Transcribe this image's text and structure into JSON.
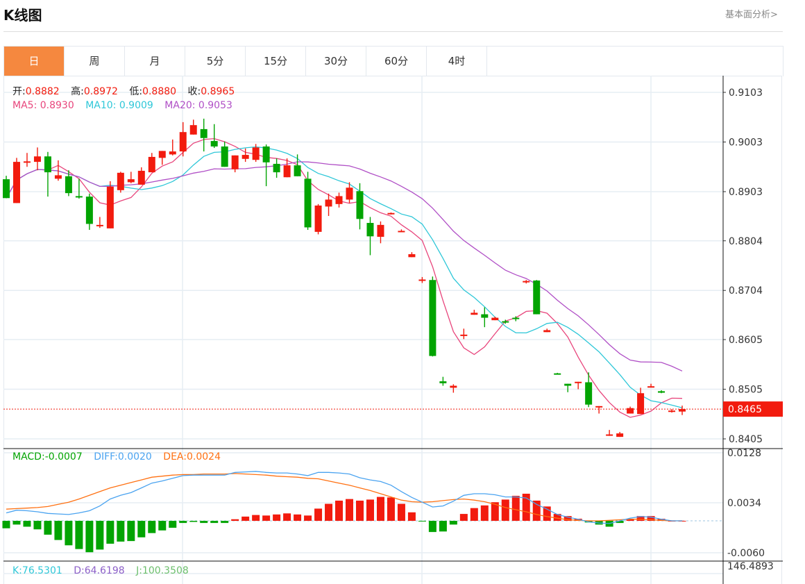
{
  "header": {
    "title": "K线图",
    "link": "基本面分析>"
  },
  "tabs": [
    {
      "label": "日",
      "active": true
    },
    {
      "label": "周",
      "active": false
    },
    {
      "label": "月",
      "active": false
    },
    {
      "label": "5分",
      "active": false
    },
    {
      "label": "15分",
      "active": false
    },
    {
      "label": "30分",
      "active": false
    },
    {
      "label": "60分",
      "active": false
    },
    {
      "label": "4时",
      "active": false
    }
  ],
  "info": {
    "open_label": "开:",
    "open": "0.8882",
    "high_label": "高:",
    "high": "0.8972",
    "low_label": "低:",
    "low": "0.8880",
    "close_label": "收:",
    "close": "0.8965"
  },
  "ma_legend": {
    "ma5_label": "MA5:",
    "ma5": "0.8930",
    "ma10_label": "MA10:",
    "ma10": "0.9009",
    "ma20_label": "MA20:",
    "ma20": "0.9053"
  },
  "macd_legend": {
    "macd_label": "MACD:",
    "macd": "-0.0007",
    "diff_label": "DIFF:",
    "diff": "0.0020",
    "dea_label": "DEA:",
    "dea": "0.0024"
  },
  "kdj_legend": {
    "k_label": "K:",
    "k": "76.5301",
    "d_label": "D:",
    "d": "64.6198",
    "j_label": "J:",
    "j": "100.3508"
  },
  "colors": {
    "up": "#f21b0e",
    "down": "#02a402",
    "accent": "#f5883f",
    "ma5": "#e8457c",
    "ma10": "#2ec7d8",
    "ma20": "#b04fc6",
    "diff": "#4aa3f0",
    "dea": "#ff7011",
    "macd_pos": "#f21b0e",
    "macd_neg": "#02a402",
    "k": "#2ec7d8",
    "d": "#8c5fc8",
    "j": "#6cbf6c"
  },
  "chart_data": {
    "type": "candlestick",
    "title": "K线图",
    "candle_format": [
      "open",
      "high",
      "low",
      "close"
    ],
    "candles": [
      [
        0.8928,
        0.8935,
        0.889,
        0.889
      ],
      [
        0.888,
        0.8971,
        0.888,
        0.8963
      ],
      [
        0.8962,
        0.8981,
        0.8953,
        0.8964
      ],
      [
        0.8963,
        0.8992,
        0.8946,
        0.8974
      ],
      [
        0.8974,
        0.8983,
        0.8893,
        0.8942
      ],
      [
        0.8929,
        0.8966,
        0.8925,
        0.8936
      ],
      [
        0.8934,
        0.8946,
        0.8894,
        0.89
      ],
      [
        0.8894,
        0.8929,
        0.8889,
        0.8893
      ],
      [
        0.8893,
        0.8899,
        0.8826,
        0.8838
      ],
      [
        0.8835,
        0.8852,
        0.883,
        0.8836
      ],
      [
        0.8829,
        0.8924,
        0.8829,
        0.8913
      ],
      [
        0.8906,
        0.8943,
        0.8901,
        0.8941
      ],
      [
        0.8922,
        0.8943,
        0.892,
        0.8928
      ],
      [
        0.8917,
        0.8952,
        0.8917,
        0.8945
      ],
      [
        0.8942,
        0.8981,
        0.8942,
        0.8973
      ],
      [
        0.8971,
        0.8985,
        0.8957,
        0.8985
      ],
      [
        0.8978,
        0.9008,
        0.8976,
        0.8984
      ],
      [
        0.8984,
        0.9043,
        0.8974,
        0.9023
      ],
      [
        0.9018,
        0.9048,
        0.9018,
        0.9037
      ],
      [
        0.9029,
        0.905,
        0.8984,
        0.9011
      ],
      [
        0.9005,
        0.9039,
        0.8991,
        0.8994
      ],
      [
        0.8994,
        0.9004,
        0.8953,
        0.8953
      ],
      [
        0.8948,
        0.8976,
        0.8942,
        0.8976
      ],
      [
        0.8969,
        0.899,
        0.8963,
        0.8977
      ],
      [
        0.8967,
        0.8999,
        0.8963,
        0.8992
      ],
      [
        0.8994,
        0.8998,
        0.8914,
        0.8962
      ],
      [
        0.8959,
        0.897,
        0.8931,
        0.8942
      ],
      [
        0.8932,
        0.897,
        0.8932,
        0.8956
      ],
      [
        0.8956,
        0.8978,
        0.8934,
        0.8934
      ],
      [
        0.8929,
        0.8943,
        0.8826,
        0.8831
      ],
      [
        0.8822,
        0.8878,
        0.8817,
        0.8875
      ],
      [
        0.8873,
        0.8899,
        0.8854,
        0.8887
      ],
      [
        0.8878,
        0.8901,
        0.8871,
        0.8894
      ],
      [
        0.8887,
        0.8922,
        0.888,
        0.8911
      ],
      [
        0.8904,
        0.892,
        0.8827,
        0.8848
      ],
      [
        0.884,
        0.8852,
        0.8775,
        0.8813
      ],
      [
        0.8812,
        0.8843,
        0.8799,
        0.8836
      ],
      [
        0.8859,
        0.8861,
        0.8857,
        0.886
      ],
      [
        0.8822,
        0.8827,
        0.8822,
        0.8824
      ],
      [
        0.8771,
        0.8781,
        0.8771,
        0.8777
      ],
      [
        0.8725,
        0.8731,
        0.8719,
        0.8726
      ],
      [
        0.8725,
        0.8732,
        0.8571,
        0.8572
      ],
      [
        0.8521,
        0.853,
        0.8512,
        0.8517
      ],
      [
        0.8508,
        0.8515,
        0.8498,
        0.8512
      ],
      [
        0.8613,
        0.8627,
        0.8606,
        0.8615
      ],
      [
        0.8655,
        0.8665,
        0.8655,
        0.8659
      ],
      [
        0.8656,
        0.867,
        0.863,
        0.8649
      ],
      [
        0.8644,
        0.8651,
        0.8644,
        0.8649
      ],
      [
        0.8642,
        0.8645,
        0.8637,
        0.864
      ],
      [
        0.8649,
        0.8652,
        0.8642,
        0.8648
      ],
      [
        0.8722,
        0.8725,
        0.8718,
        0.8723
      ],
      [
        0.8724,
        0.8725,
        0.8656,
        0.8656
      ],
      [
        0.862,
        0.8627,
        0.862,
        0.8624
      ],
      [
        0.8537,
        0.8538,
        0.8535,
        0.8536
      ],
      [
        0.8516,
        0.8516,
        0.8499,
        0.8512
      ],
      [
        0.8519,
        0.852,
        0.8505,
        0.852
      ],
      [
        0.8519,
        0.8539,
        0.8469,
        0.8474
      ],
      [
        0.847,
        0.8471,
        0.8456,
        0.8471
      ],
      [
        0.8413,
        0.8423,
        0.8411,
        0.8414
      ],
      [
        0.8409,
        0.8419,
        0.8409,
        0.8416
      ],
      [
        0.8456,
        0.847,
        0.8456,
        0.8467
      ],
      [
        0.8455,
        0.8508,
        0.8455,
        0.8497
      ],
      [
        0.851,
        0.8516,
        0.8509,
        0.8511
      ],
      [
        0.8501,
        0.8503,
        0.8497,
        0.8498
      ],
      [
        0.846,
        0.8465,
        0.8458,
        0.8462
      ],
      [
        0.846,
        0.8472,
        0.8453,
        0.8465
      ]
    ],
    "ma_periods": [
      5,
      10,
      20
    ],
    "price_axis": {
      "ticks": [
        "0.9103",
        "0.9003",
        "0.8903",
        "0.8804",
        "0.8704",
        "0.8605",
        "0.8505",
        "0.8405"
      ],
      "range": [
        0.8405,
        0.9103
      ]
    },
    "last_price": 0.8465,
    "last_price_label": "0.8465",
    "macd": {
      "hist": [
        -0.0014,
        -0.0007,
        -0.0011,
        -0.0016,
        -0.0026,
        -0.0036,
        -0.0046,
        -0.0053,
        -0.0059,
        -0.0054,
        -0.0043,
        -0.0039,
        -0.0038,
        -0.0031,
        -0.0023,
        -0.0018,
        -0.0013,
        -0.0004,
        -0.0002,
        -0.0004,
        -0.0004,
        -0.0004,
        0.0003,
        0.0008,
        0.0011,
        0.001,
        0.0012,
        0.0014,
        0.0012,
        0.001,
        0.0023,
        0.0032,
        0.0038,
        0.0041,
        0.0038,
        0.004,
        0.0045,
        0.0044,
        0.0032,
        0.0016,
        -0.0001,
        -0.0021,
        -0.002,
        -0.0007,
        0.0013,
        0.0024,
        0.0029,
        0.0035,
        0.004,
        0.0047,
        0.0051,
        0.0038,
        0.0027,
        0.0013,
        0.0009,
        0.0004,
        -0.0003,
        -0.0007,
        -0.0011,
        -0.0004,
        0.0004,
        0.0009,
        0.0009,
        0.0004,
        0.0,
        0.0
      ],
      "diff": [
        0.0015,
        0.002,
        0.0019,
        0.0017,
        0.0014,
        0.0013,
        0.0012,
        0.0015,
        0.0019,
        0.0028,
        0.0041,
        0.0048,
        0.0053,
        0.0062,
        0.0071,
        0.0075,
        0.008,
        0.0085,
        0.0086,
        0.0086,
        0.0086,
        0.0086,
        0.0091,
        0.0092,
        0.0093,
        0.0091,
        0.009,
        0.009,
        0.0088,
        0.0085,
        0.0091,
        0.0091,
        0.009,
        0.0088,
        0.0081,
        0.0077,
        0.0074,
        0.0067,
        0.0055,
        0.0044,
        0.0035,
        0.0026,
        0.0028,
        0.0037,
        0.0048,
        0.0051,
        0.0051,
        0.0049,
        0.0045,
        0.0045,
        0.0043,
        0.0031,
        0.0022,
        0.0012,
        0.0007,
        0.0003,
        -0.0002,
        -0.0004,
        -0.0005,
        0.0,
        0.0005,
        0.0008,
        0.0007,
        0.0003,
        0.0,
        0.0
      ],
      "dea": [
        0.0022,
        0.0023,
        0.0024,
        0.0025,
        0.0027,
        0.0031,
        0.0035,
        0.0041,
        0.0048,
        0.0055,
        0.0062,
        0.0067,
        0.0072,
        0.0077,
        0.0082,
        0.0084,
        0.0086,
        0.0087,
        0.0087,
        0.0088,
        0.0088,
        0.0088,
        0.0089,
        0.0088,
        0.0087,
        0.0086,
        0.0084,
        0.0083,
        0.0082,
        0.008,
        0.0079,
        0.0075,
        0.0071,
        0.0067,
        0.0062,
        0.0057,
        0.0051,
        0.0045,
        0.0039,
        0.0036,
        0.0035,
        0.0036,
        0.0038,
        0.004,
        0.0041,
        0.0039,
        0.0036,
        0.0031,
        0.0025,
        0.0021,
        0.0017,
        0.0012,
        0.0008,
        0.0005,
        0.0002,
        0.0001,
        0.0,
        0.0,
        0.0001,
        0.0002,
        0.0003,
        0.0003,
        0.0002,
        0.0001,
        0.0,
        0.0
      ],
      "ticks": [
        "0.0128",
        "0.0034",
        "-0.0060"
      ],
      "range": [
        -0.006,
        0.0128
      ]
    },
    "kdj": {
      "ticks": [
        "146.4893"
      ]
    }
  }
}
